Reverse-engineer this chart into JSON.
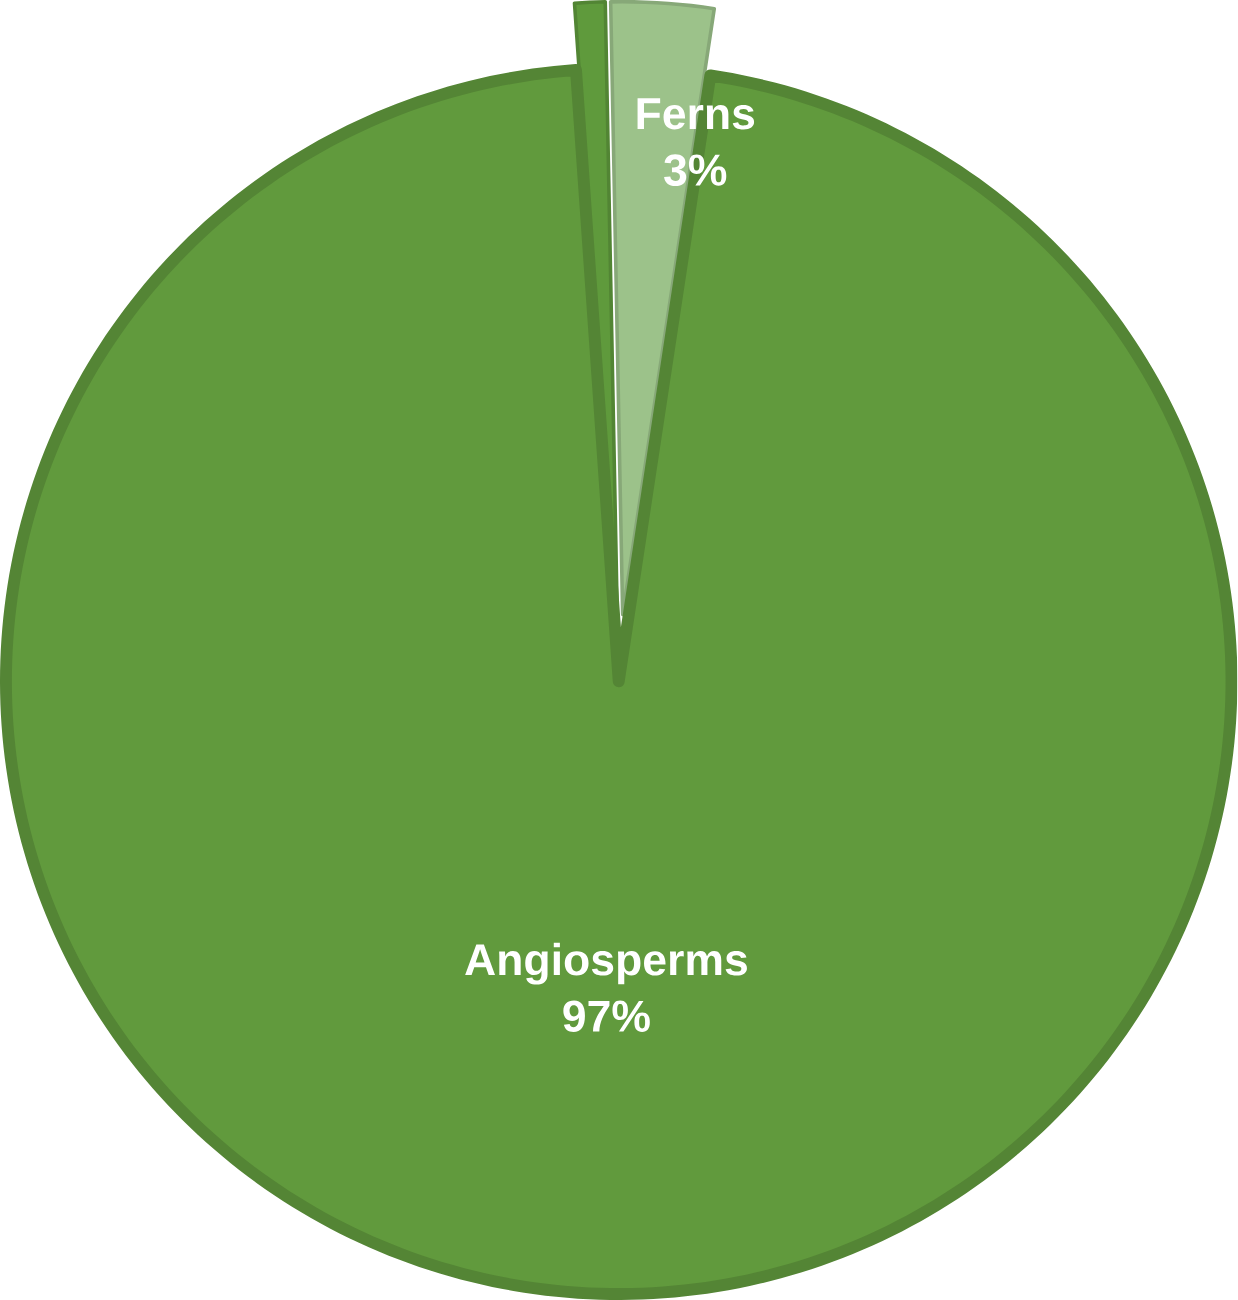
{
  "chart_data": {
    "type": "pie",
    "categories": [
      null,
      "Ferns",
      "Angiosperms"
    ],
    "values": [
      0.8,
      2.7,
      96.5
    ],
    "value_labels": [
      null,
      "3%",
      "97%"
    ],
    "colors": [
      "#5f9a3c",
      "#9cc28a",
      "#619a3d"
    ]
  }
}
